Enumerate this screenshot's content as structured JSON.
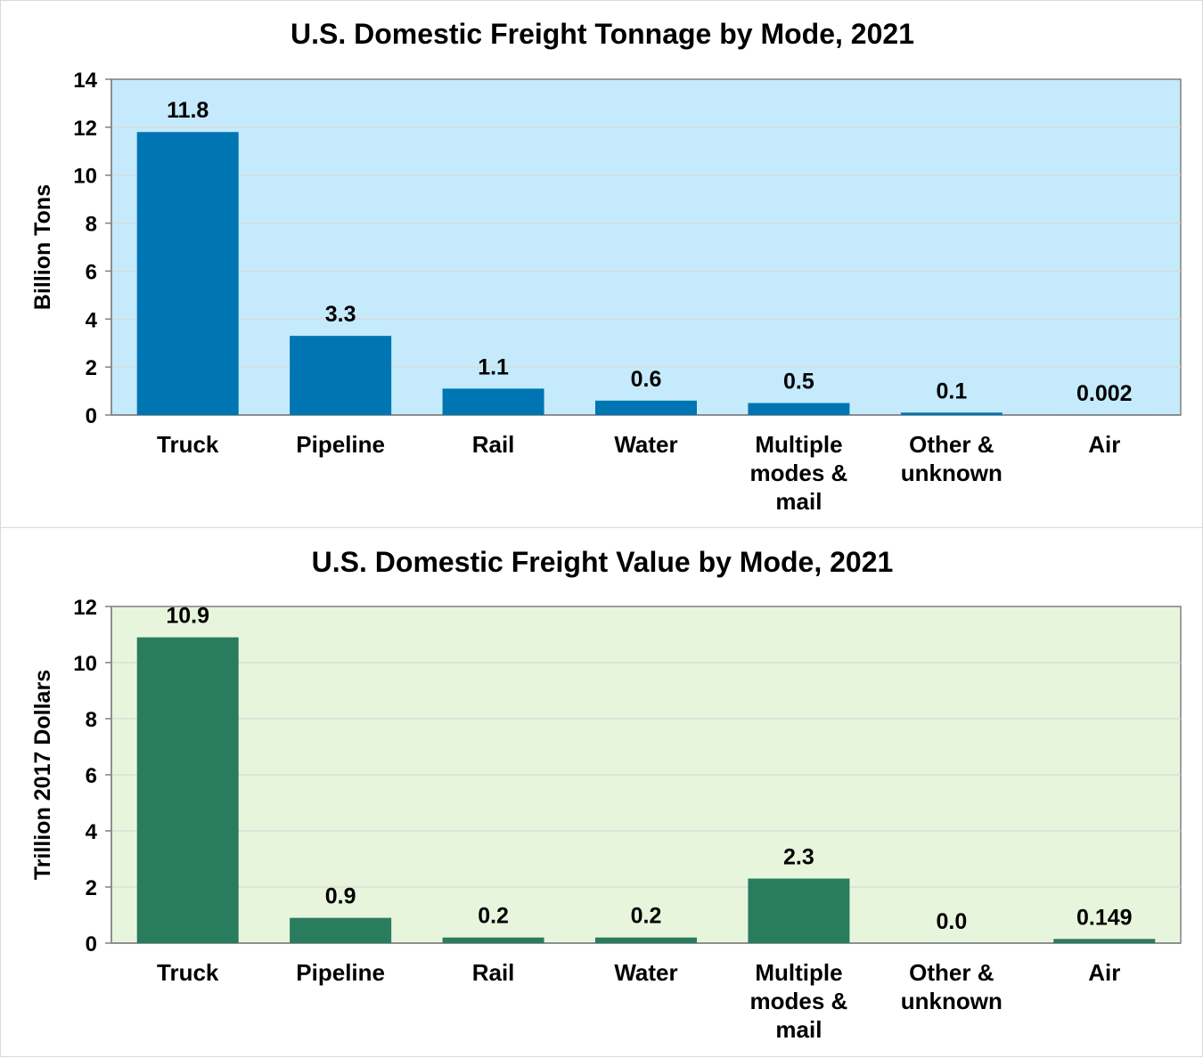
{
  "chart_data": [
    {
      "type": "bar",
      "title": "U.S. Domestic Freight Tonnage by Mode, 2021",
      "xlabel": "",
      "ylabel": "Billion Tons",
      "ylim": [
        0,
        14
      ],
      "yticks": [
        "0",
        "2",
        "4",
        "6",
        "8",
        "10",
        "12",
        "14"
      ],
      "categories": [
        [
          "Truck"
        ],
        [
          "Pipeline"
        ],
        [
          "Rail"
        ],
        [
          "Water"
        ],
        [
          "Multiple",
          "modes &",
          "mail"
        ],
        [
          "Other &",
          "unknown"
        ],
        [
          "Air"
        ]
      ],
      "values": [
        11.8,
        3.3,
        1.1,
        0.6,
        0.5,
        0.1,
        0.002
      ],
      "data_labels": [
        "11.8",
        "3.3",
        "1.1",
        "0.6",
        "0.5",
        "0.1",
        "0.002"
      ],
      "colors": {
        "bar": "#0075B3",
        "plot_bg": "#C5EAFB",
        "grid": "#D9D9D9",
        "axis": "#808080"
      },
      "grid": true,
      "legend": "none"
    },
    {
      "type": "bar",
      "title": "U.S. Domestic Freight Value by Mode, 2021",
      "xlabel": "",
      "ylabel": "Trillion 2017 Dollars",
      "ylim": [
        0,
        12
      ],
      "yticks": [
        "0",
        "2",
        "4",
        "6",
        "8",
        "10",
        "12"
      ],
      "categories": [
        [
          "Truck"
        ],
        [
          "Pipeline"
        ],
        [
          "Rail"
        ],
        [
          "Water"
        ],
        [
          "Multiple",
          "modes &",
          "mail"
        ],
        [
          "Other &",
          "unknown"
        ],
        [
          "Air"
        ]
      ],
      "values": [
        10.9,
        0.9,
        0.2,
        0.2,
        2.3,
        0.0,
        0.149
      ],
      "data_labels": [
        "10.9",
        "0.9",
        "0.2",
        "0.2",
        "2.3",
        "0.0",
        "0.149"
      ],
      "colors": {
        "bar": "#2A7C5E",
        "plot_bg": "#E8F5DD",
        "grid": "#D9D9D9",
        "axis": "#808080"
      },
      "grid": true,
      "legend": "none"
    }
  ]
}
